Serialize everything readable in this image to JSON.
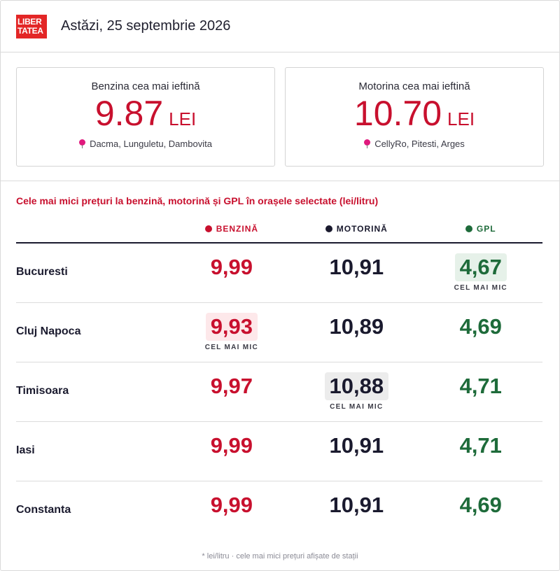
{
  "header": {
    "logo_line1": "LIBER",
    "logo_line2": "TATEA",
    "date": "Astăzi, 25 septembrie 2026"
  },
  "cards": [
    {
      "title": "Benzina cea mai ieftină",
      "price": "9.87",
      "unit": "LEI",
      "location": "Dacma, Lunguletu, Dambovita"
    },
    {
      "title": "Motorina cea mai ieftină",
      "price": "10.70",
      "unit": "LEI",
      "location": "CellyRo, Pitesti, Arges"
    }
  ],
  "table": {
    "subtitle": "Cele mai mici prețuri la benzină, motorină și GPL în orașele selectate (lei/litru)",
    "headers": {
      "benzina": "BENZINĂ",
      "motorina": "MOTORINĂ",
      "gpl": "GPL"
    },
    "badge_label": "CEL MAI MIC",
    "rows": [
      {
        "city": "Bucuresti",
        "benzina": "9,99",
        "motorina": "10,91",
        "gpl": "4,67"
      },
      {
        "city": "Cluj Napoca",
        "benzina": "9,93",
        "motorina": "10,89",
        "gpl": "4,69"
      },
      {
        "city": "Timisoara",
        "benzina": "9,97",
        "motorina": "10,88",
        "gpl": "4,71"
      },
      {
        "city": "Iasi",
        "benzina": "9,99",
        "motorina": "10,91",
        "gpl": "4,71"
      },
      {
        "city": "Constanta",
        "benzina": "9,99",
        "motorina": "10,91",
        "gpl": "4,69"
      }
    ],
    "lowest": {
      "benzina": "Cluj Napoca",
      "motorina": "Timisoara",
      "gpl": "Bucuresti"
    }
  },
  "colors": {
    "benzina": "#c8102e",
    "motorina": "#1a1a2e",
    "gpl": "#1e6b3a",
    "logo": "#e32626",
    "pin": "#e0197d"
  },
  "icons": {
    "location": "map-pin-icon"
  },
  "footer": "* lei/litru · cele mai mici prețuri afișate de stații"
}
